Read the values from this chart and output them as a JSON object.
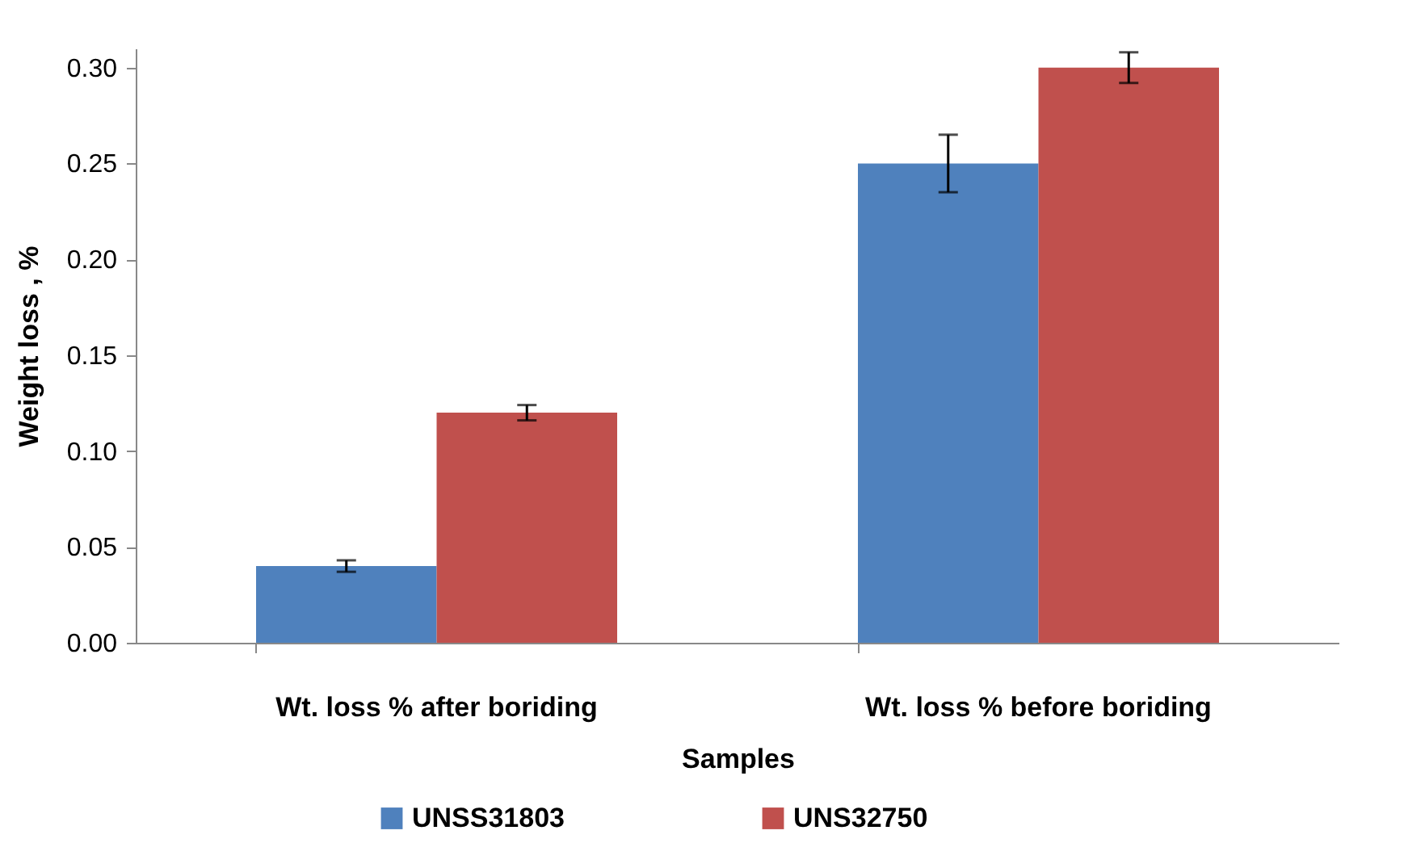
{
  "chart_data": {
    "type": "bar",
    "xlabel": "Samples",
    "ylabel": "Weight loss , %",
    "categories": [
      "Wt. loss % after boriding",
      "Wt. loss % before boriding"
    ],
    "series": [
      {
        "name": "UNSS31803",
        "color": "#4f81bd",
        "values": [
          0.04,
          0.25
        ],
        "errors": [
          0.003,
          0.015
        ]
      },
      {
        "name": "UNS32750",
        "color": "#c0504d",
        "values": [
          0.12,
          0.3
        ],
        "errors": [
          0.004,
          0.008
        ]
      }
    ],
    "ylim": [
      0,
      0.31
    ],
    "yticks": [
      {
        "value": 0,
        "label": "0.00"
      },
      {
        "value": 0.05,
        "label": "0.05"
      },
      {
        "value": 0.1,
        "label": "0.10"
      },
      {
        "value": 0.15,
        "label": "0.15"
      },
      {
        "value": 0.2,
        "label": "0.20"
      },
      {
        "value": 0.25,
        "label": "0.25"
      },
      {
        "value": 0.3,
        "label": "0.30"
      }
    ],
    "legend": "bottom"
  }
}
